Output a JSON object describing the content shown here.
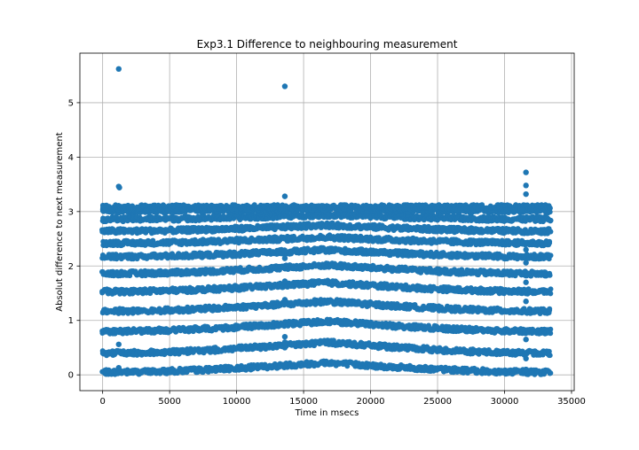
{
  "chart_data": {
    "type": "scatter",
    "title": "Exp3.1 Difference to neighbouring measurement",
    "xlabel": "Time in msecs",
    "ylabel": "Absolut difference to next measurement",
    "xlim": [
      -1700,
      35200
    ],
    "ylim": [
      -0.29,
      5.91
    ],
    "xticks": [
      0,
      5000,
      10000,
      15000,
      20000,
      25000,
      30000,
      35000
    ],
    "xtick_labels": [
      "0",
      "5000",
      "10000",
      "15000",
      "20000",
      "25000",
      "30000",
      "35000"
    ],
    "yticks": [
      0,
      1,
      2,
      3,
      4,
      5
    ],
    "ytick_labels": [
      "0",
      "1",
      "2",
      "3",
      "4",
      "5"
    ],
    "grid": true,
    "marker_color": "#1f77b4",
    "series": [
      {
        "x_range": [
          0,
          33400
        ],
        "bands": {
          "centers": [
            0.05,
            0.4,
            0.8,
            1.17,
            1.53,
            1.86,
            2.17,
            2.42,
            2.64,
            2.86,
            3.02,
            3.08
          ],
          "crossing_period_ms": 33400,
          "y_max": 3.14
        },
        "outliers": [
          {
            "x": 1200,
            "y": 5.62
          },
          {
            "x": 13600,
            "y": 5.3
          },
          {
            "x": 1200,
            "y": 3.46
          },
          {
            "x": 1250,
            "y": 3.44
          },
          {
            "x": 13600,
            "y": 3.28
          },
          {
            "x": 31600,
            "y": 3.72
          },
          {
            "x": 31600,
            "y": 3.48
          },
          {
            "x": 31600,
            "y": 3.32
          },
          {
            "x": 13600,
            "y": 2.28
          },
          {
            "x": 13600,
            "y": 2.14
          },
          {
            "x": 13600,
            "y": 1.72
          },
          {
            "x": 13600,
            "y": 1.38
          },
          {
            "x": 13600,
            "y": 1.3
          },
          {
            "x": 13600,
            "y": 0.7
          },
          {
            "x": 13600,
            "y": 0.6
          },
          {
            "x": 13600,
            "y": 0.5
          },
          {
            "x": 13600,
            "y": 0.19
          },
          {
            "x": 1200,
            "y": 0.56
          },
          {
            "x": 1200,
            "y": 0.13
          },
          {
            "x": 31600,
            "y": 2.3
          },
          {
            "x": 31600,
            "y": 2.06
          },
          {
            "x": 31600,
            "y": 1.7
          },
          {
            "x": 31600,
            "y": 1.35
          },
          {
            "x": 31600,
            "y": 0.65
          },
          {
            "x": 31600,
            "y": 0.3
          },
          {
            "x": 31600,
            "y": 0.1
          }
        ]
      }
    ]
  }
}
